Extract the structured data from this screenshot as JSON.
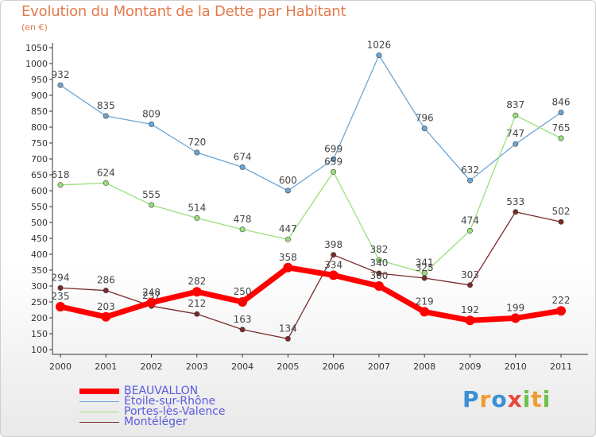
{
  "chart_data": {
    "type": "line",
    "title": "Evolution du Montant de la Dette par Habitant",
    "subtitle": "(en €)",
    "x": [
      "2000",
      "2001",
      "2002",
      "2003",
      "2004",
      "2005",
      "2006",
      "2007",
      "2008",
      "2009",
      "2010",
      "2011"
    ],
    "ylim": [
      100,
      1050
    ],
    "yticks": [
      100,
      150,
      200,
      250,
      300,
      350,
      400,
      450,
      500,
      550,
      600,
      650,
      700,
      750,
      800,
      850,
      900,
      950,
      1000,
      1050
    ],
    "grid": false,
    "legend_position": "bottom-left",
    "series": [
      {
        "name": "BEAUVALLON",
        "color": "#ff0000",
        "values": [
          235,
          203,
          248,
          282,
          250,
          358,
          334,
          300,
          219,
          192,
          199,
          222
        ]
      },
      {
        "name": "Étoile-sur-Rhône",
        "color": "#6aa6d6",
        "values": [
          932,
          835,
          809,
          720,
          674,
          600,
          699,
          1026,
          796,
          632,
          747,
          846
        ]
      },
      {
        "name": "Portes-lès-Valence",
        "color": "#99e07a",
        "values": [
          618,
          624,
          555,
          514,
          478,
          447,
          659,
          382,
          341,
          474,
          837,
          765
        ]
      },
      {
        "name": "Montéléger",
        "color": "#7a2a2a",
        "values": [
          294,
          286,
          237,
          212,
          163,
          134,
          398,
          340,
          325,
          303,
          533,
          502
        ]
      }
    ]
  },
  "logo": {
    "letters": [
      "P",
      "r",
      "o",
      "x",
      "i",
      "t",
      "i"
    ],
    "colors": [
      "#3b8fd6",
      "#f29a2e",
      "#3b8fd6",
      "#e9473a",
      "#6cc04a",
      "#f29a2e",
      "#6cc04a"
    ]
  }
}
